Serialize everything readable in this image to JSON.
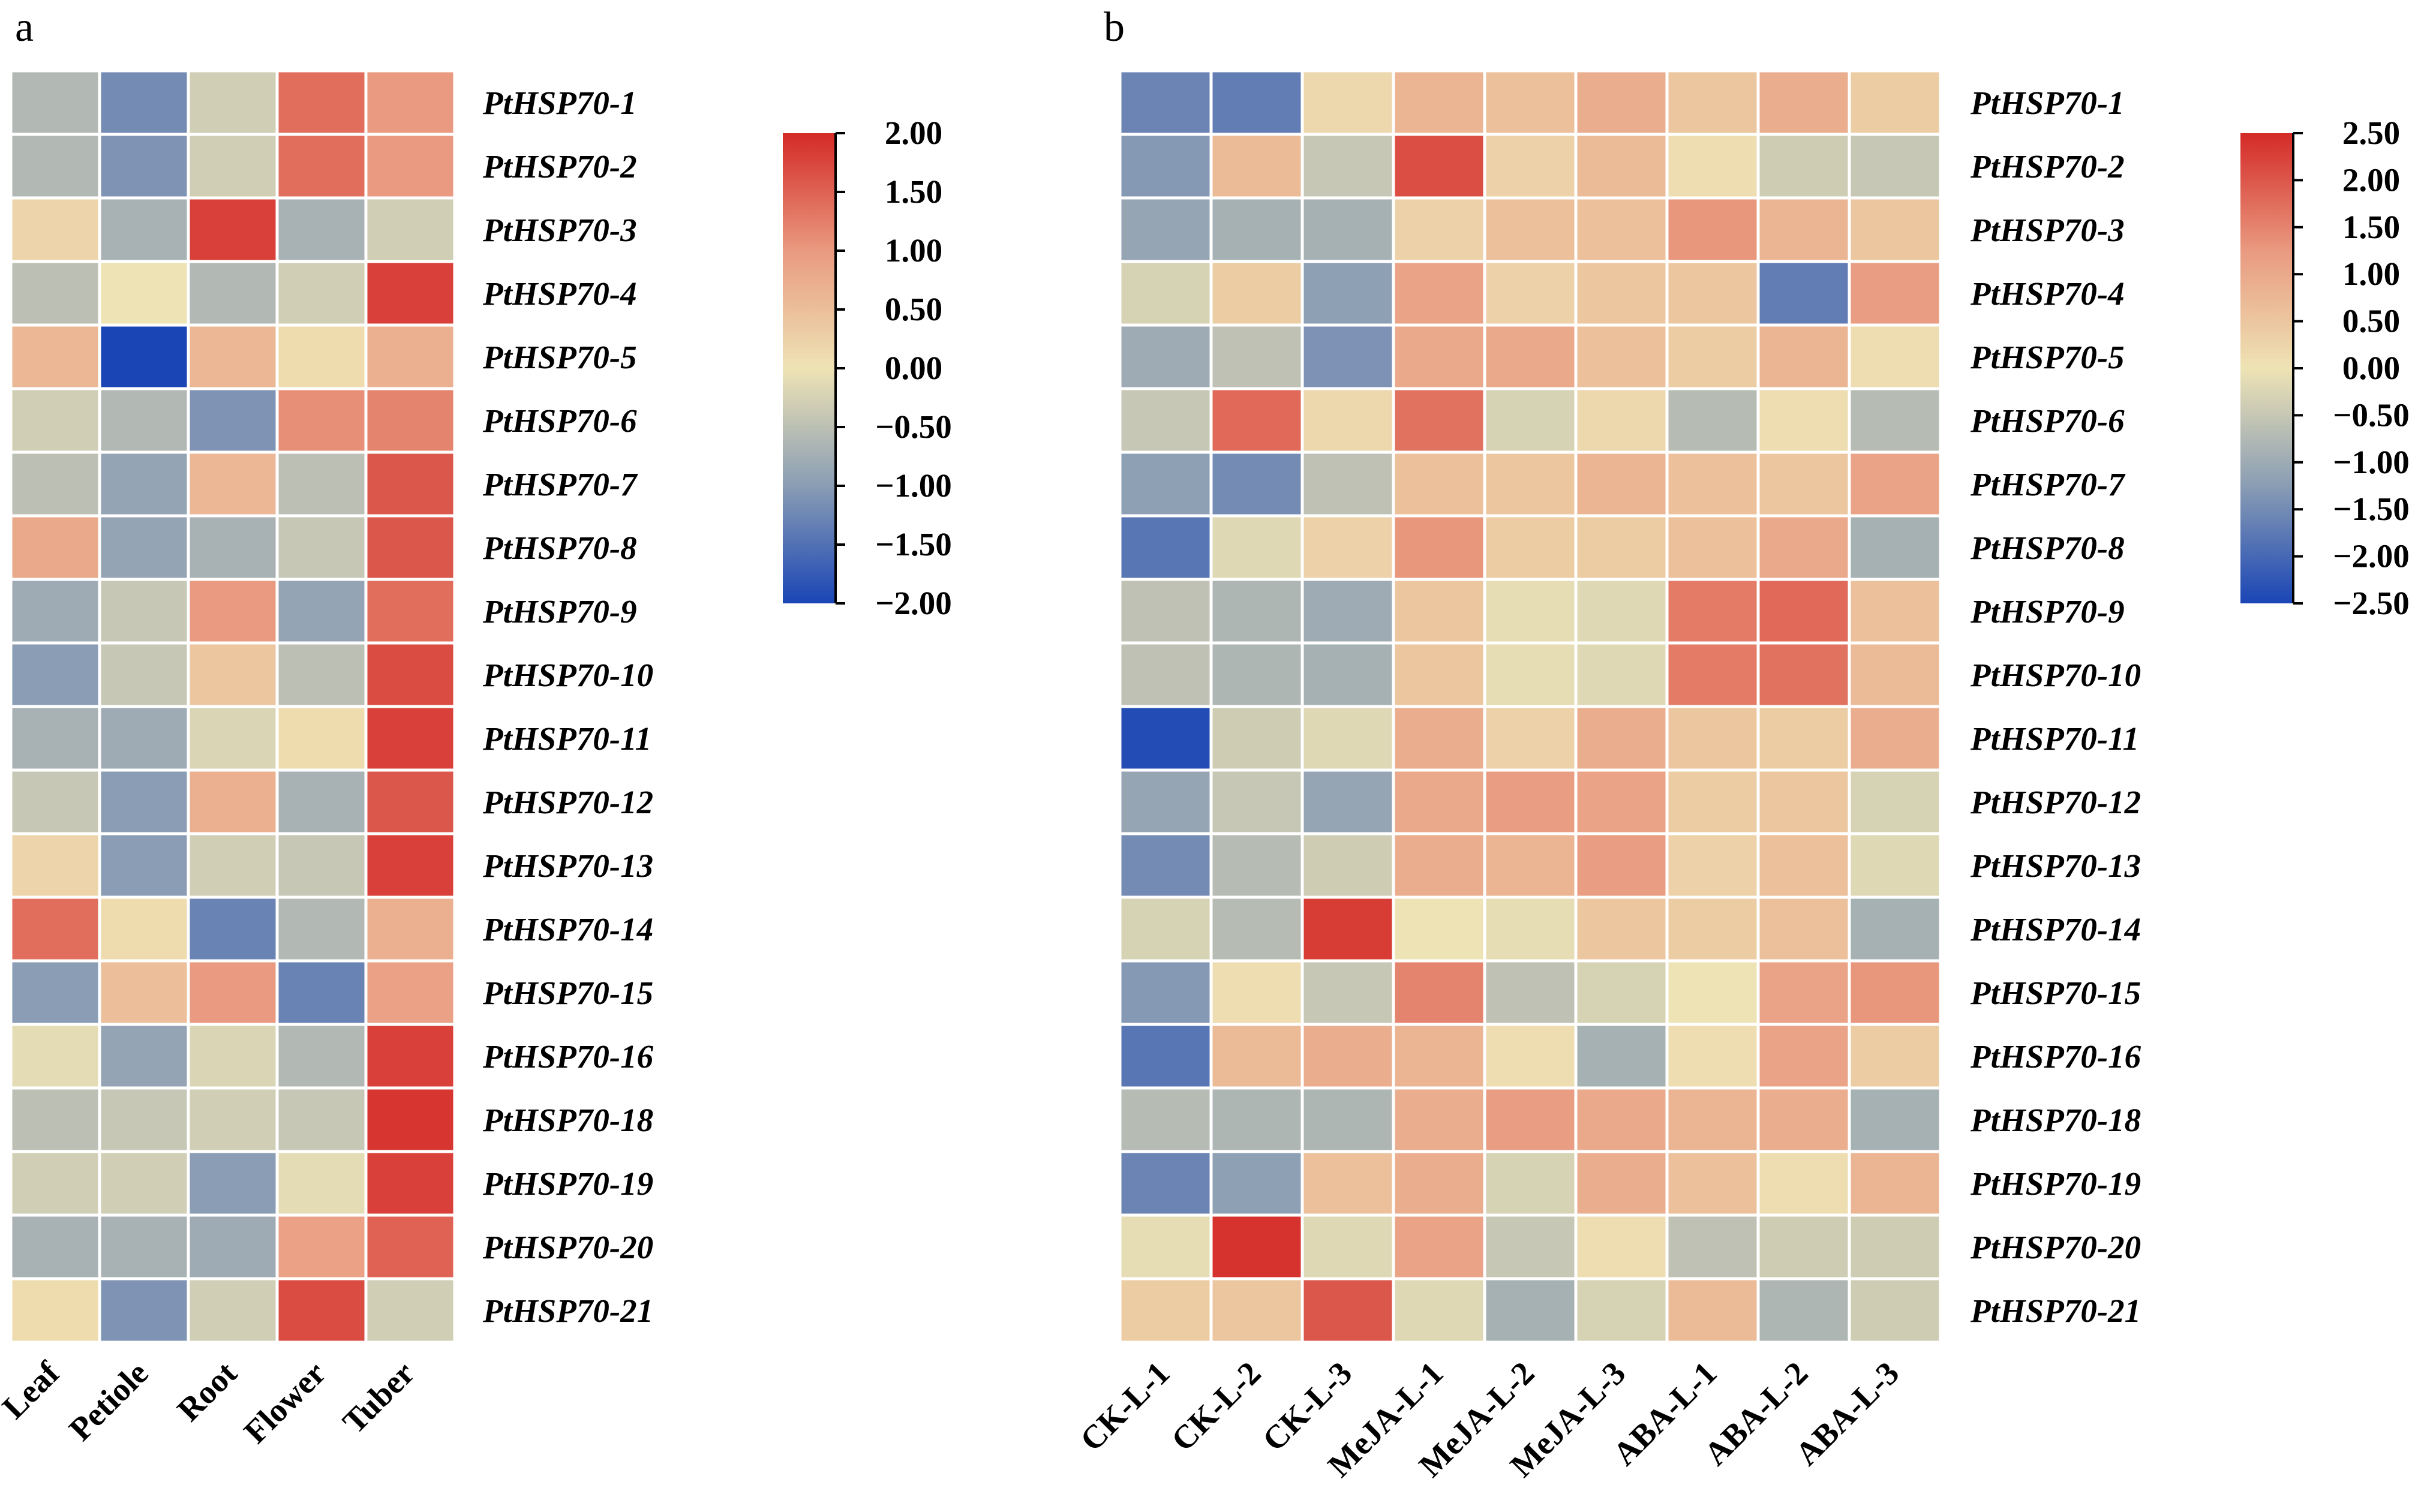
{
  "chart_data": [
    {
      "type": "heatmap",
      "panel_label": "a",
      "row_labels": [
        "PtHSP70-1",
        "PtHSP70-2",
        "PtHSP70-3",
        "PtHSP70-4",
        "PtHSP70-5",
        "PtHSP70-6",
        "PtHSP70-7",
        "PtHSP70-8",
        "PtHSP70-9",
        "PtHSP70-10",
        "PtHSP70-11",
        "PtHSP70-12",
        "PtHSP70-13",
        "PtHSP70-14",
        "PtHSP70-15",
        "PtHSP70-16",
        "PtHSP70-18",
        "PtHSP70-19",
        "PtHSP70-20",
        "PtHSP70-21"
      ],
      "col_labels": [
        "Leaf",
        "Petiole",
        "Root",
        "Flower",
        "Tuber"
      ],
      "values": [
        [
          -0.6,
          -1.2,
          -0.3,
          1.4,
          1.0
        ],
        [
          -0.6,
          -1.1,
          -0.3,
          1.4,
          1.0
        ],
        [
          0.2,
          -0.7,
          1.8,
          -0.7,
          -0.3
        ],
        [
          -0.5,
          0.0,
          -0.6,
          -0.3,
          1.8
        ],
        [
          0.6,
          -2.0,
          0.6,
          0.1,
          0.7
        ],
        [
          -0.3,
          -0.6,
          -1.1,
          1.1,
          1.2
        ],
        [
          -0.5,
          -0.9,
          0.6,
          -0.5,
          1.6
        ],
        [
          0.8,
          -0.9,
          -0.7,
          -0.4,
          1.6
        ],
        [
          -0.8,
          -0.4,
          1.0,
          -0.9,
          1.4
        ],
        [
          -1.0,
          -0.4,
          0.4,
          -0.5,
          1.7
        ],
        [
          -0.7,
          -0.8,
          -0.2,
          0.1,
          1.8
        ],
        [
          -0.4,
          -1.0,
          0.7,
          -0.7,
          1.6
        ],
        [
          0.2,
          -1.0,
          -0.3,
          -0.4,
          1.8
        ],
        [
          1.4,
          0.1,
          -1.3,
          -0.6,
          0.7
        ],
        [
          -1.0,
          0.5,
          1.0,
          -1.3,
          0.9
        ],
        [
          -0.1,
          -0.9,
          -0.2,
          -0.6,
          1.8
        ],
        [
          -0.5,
          -0.4,
          -0.3,
          -0.4,
          1.9
        ],
        [
          -0.3,
          -0.3,
          -1.0,
          -0.1,
          1.8
        ],
        [
          -0.7,
          -0.7,
          -0.8,
          0.9,
          1.5
        ],
        [
          0.1,
          -1.1,
          -0.3,
          1.7,
          -0.3
        ]
      ],
      "colorbar": {
        "ticks": [
          "2.00",
          "1.50",
          "1.00",
          "0.50",
          "0.00",
          "−0.50",
          "−1.00",
          "−1.50",
          "−2.00"
        ],
        "min": -2.0,
        "max": 2.0
      }
    },
    {
      "type": "heatmap",
      "panel_label": "b",
      "row_labels": [
        "PtHSP70-1",
        "PtHSP70-2",
        "PtHSP70-3",
        "PtHSP70-4",
        "PtHSP70-5",
        "PtHSP70-6",
        "PtHSP70-7",
        "PtHSP70-8",
        "PtHSP70-9",
        "PtHSP70-10",
        "PtHSP70-11",
        "PtHSP70-12",
        "PtHSP70-13",
        "PtHSP70-14",
        "PtHSP70-15",
        "PtHSP70-16",
        "PtHSP70-18",
        "PtHSP70-19",
        "PtHSP70-20",
        "PtHSP70-21"
      ],
      "col_labels": [
        "CK-L-1",
        "CK-L-2",
        "CK-L-3",
        "MeJA-L-1",
        "MeJA-L-2",
        "MeJA-L-3",
        "ABA-L-1",
        "ABA-L-2",
        "ABA-L-3"
      ],
      "values": [
        [
          -1.6,
          -1.7,
          0.2,
          0.8,
          0.6,
          0.9,
          0.5,
          0.9,
          0.4
        ],
        [
          -1.3,
          0.7,
          -0.5,
          2.1,
          0.3,
          0.7,
          0.1,
          -0.4,
          -0.5
        ],
        [
          -1.1,
          -0.9,
          -0.9,
          0.3,
          0.6,
          0.6,
          1.3,
          0.8,
          0.5
        ],
        [
          -0.3,
          0.4,
          -1.2,
          1.1,
          0.3,
          0.5,
          0.5,
          -1.7,
          1.2
        ],
        [
          -1.0,
          -0.6,
          -1.4,
          1.0,
          1.0,
          0.6,
          0.4,
          0.8,
          0.1
        ],
        [
          -0.5,
          1.8,
          0.2,
          1.7,
          -0.3,
          0.2,
          -0.7,
          0.1,
          -0.7
        ],
        [
          -1.2,
          -1.5,
          -0.6,
          0.6,
          0.5,
          0.8,
          0.6,
          0.5,
          1.1
        ],
        [
          -1.8,
          -0.2,
          0.3,
          1.3,
          0.4,
          0.4,
          0.6,
          1.0,
          -0.9
        ],
        [
          -0.6,
          -0.8,
          -1.0,
          0.5,
          -0.1,
          -0.2,
          1.6,
          1.8,
          0.6
        ],
        [
          -0.6,
          -0.8,
          -0.9,
          0.5,
          -0.1,
          -0.2,
          1.6,
          1.7,
          0.7
        ],
        [
          -2.4,
          -0.4,
          -0.2,
          0.9,
          0.3,
          0.9,
          0.5,
          0.4,
          0.9
        ],
        [
          -1.1,
          -0.5,
          -1.1,
          1.0,
          1.2,
          1.1,
          0.4,
          0.5,
          -0.3
        ],
        [
          -1.5,
          -0.7,
          -0.4,
          0.9,
          0.8,
          1.2,
          0.3,
          0.6,
          -0.2
        ],
        [
          -0.3,
          -0.7,
          2.3,
          0.0,
          -0.1,
          0.5,
          0.4,
          0.6,
          -0.9
        ],
        [
          -1.3,
          0.1,
          -0.5,
          1.5,
          -0.6,
          -0.3,
          0.0,
          1.1,
          1.3
        ],
        [
          -1.8,
          0.7,
          0.9,
          0.8,
          0.1,
          -0.9,
          0.1,
          1.1,
          0.4
        ],
        [
          -0.7,
          -0.8,
          -0.8,
          0.9,
          1.2,
          1.0,
          0.8,
          0.9,
          -0.9
        ],
        [
          -1.6,
          -1.2,
          0.6,
          0.9,
          -0.3,
          0.9,
          0.6,
          0.1,
          0.8
        ],
        [
          -0.1,
          2.4,
          -0.2,
          1.1,
          -0.5,
          0.1,
          -0.6,
          -0.4,
          -0.4
        ],
        [
          0.4,
          0.5,
          2.0,
          -0.2,
          -0.9,
          -0.3,
          0.7,
          -0.8,
          -0.4
        ]
      ],
      "colorbar": {
        "ticks": [
          "2.50",
          "2.00",
          "1.50",
          "1.00",
          "0.50",
          "0.00",
          "−0.50",
          "−1.00",
          "−1.50",
          "−2.00",
          "−2.50"
        ],
        "min": -2.5,
        "max": 2.5
      }
    }
  ]
}
